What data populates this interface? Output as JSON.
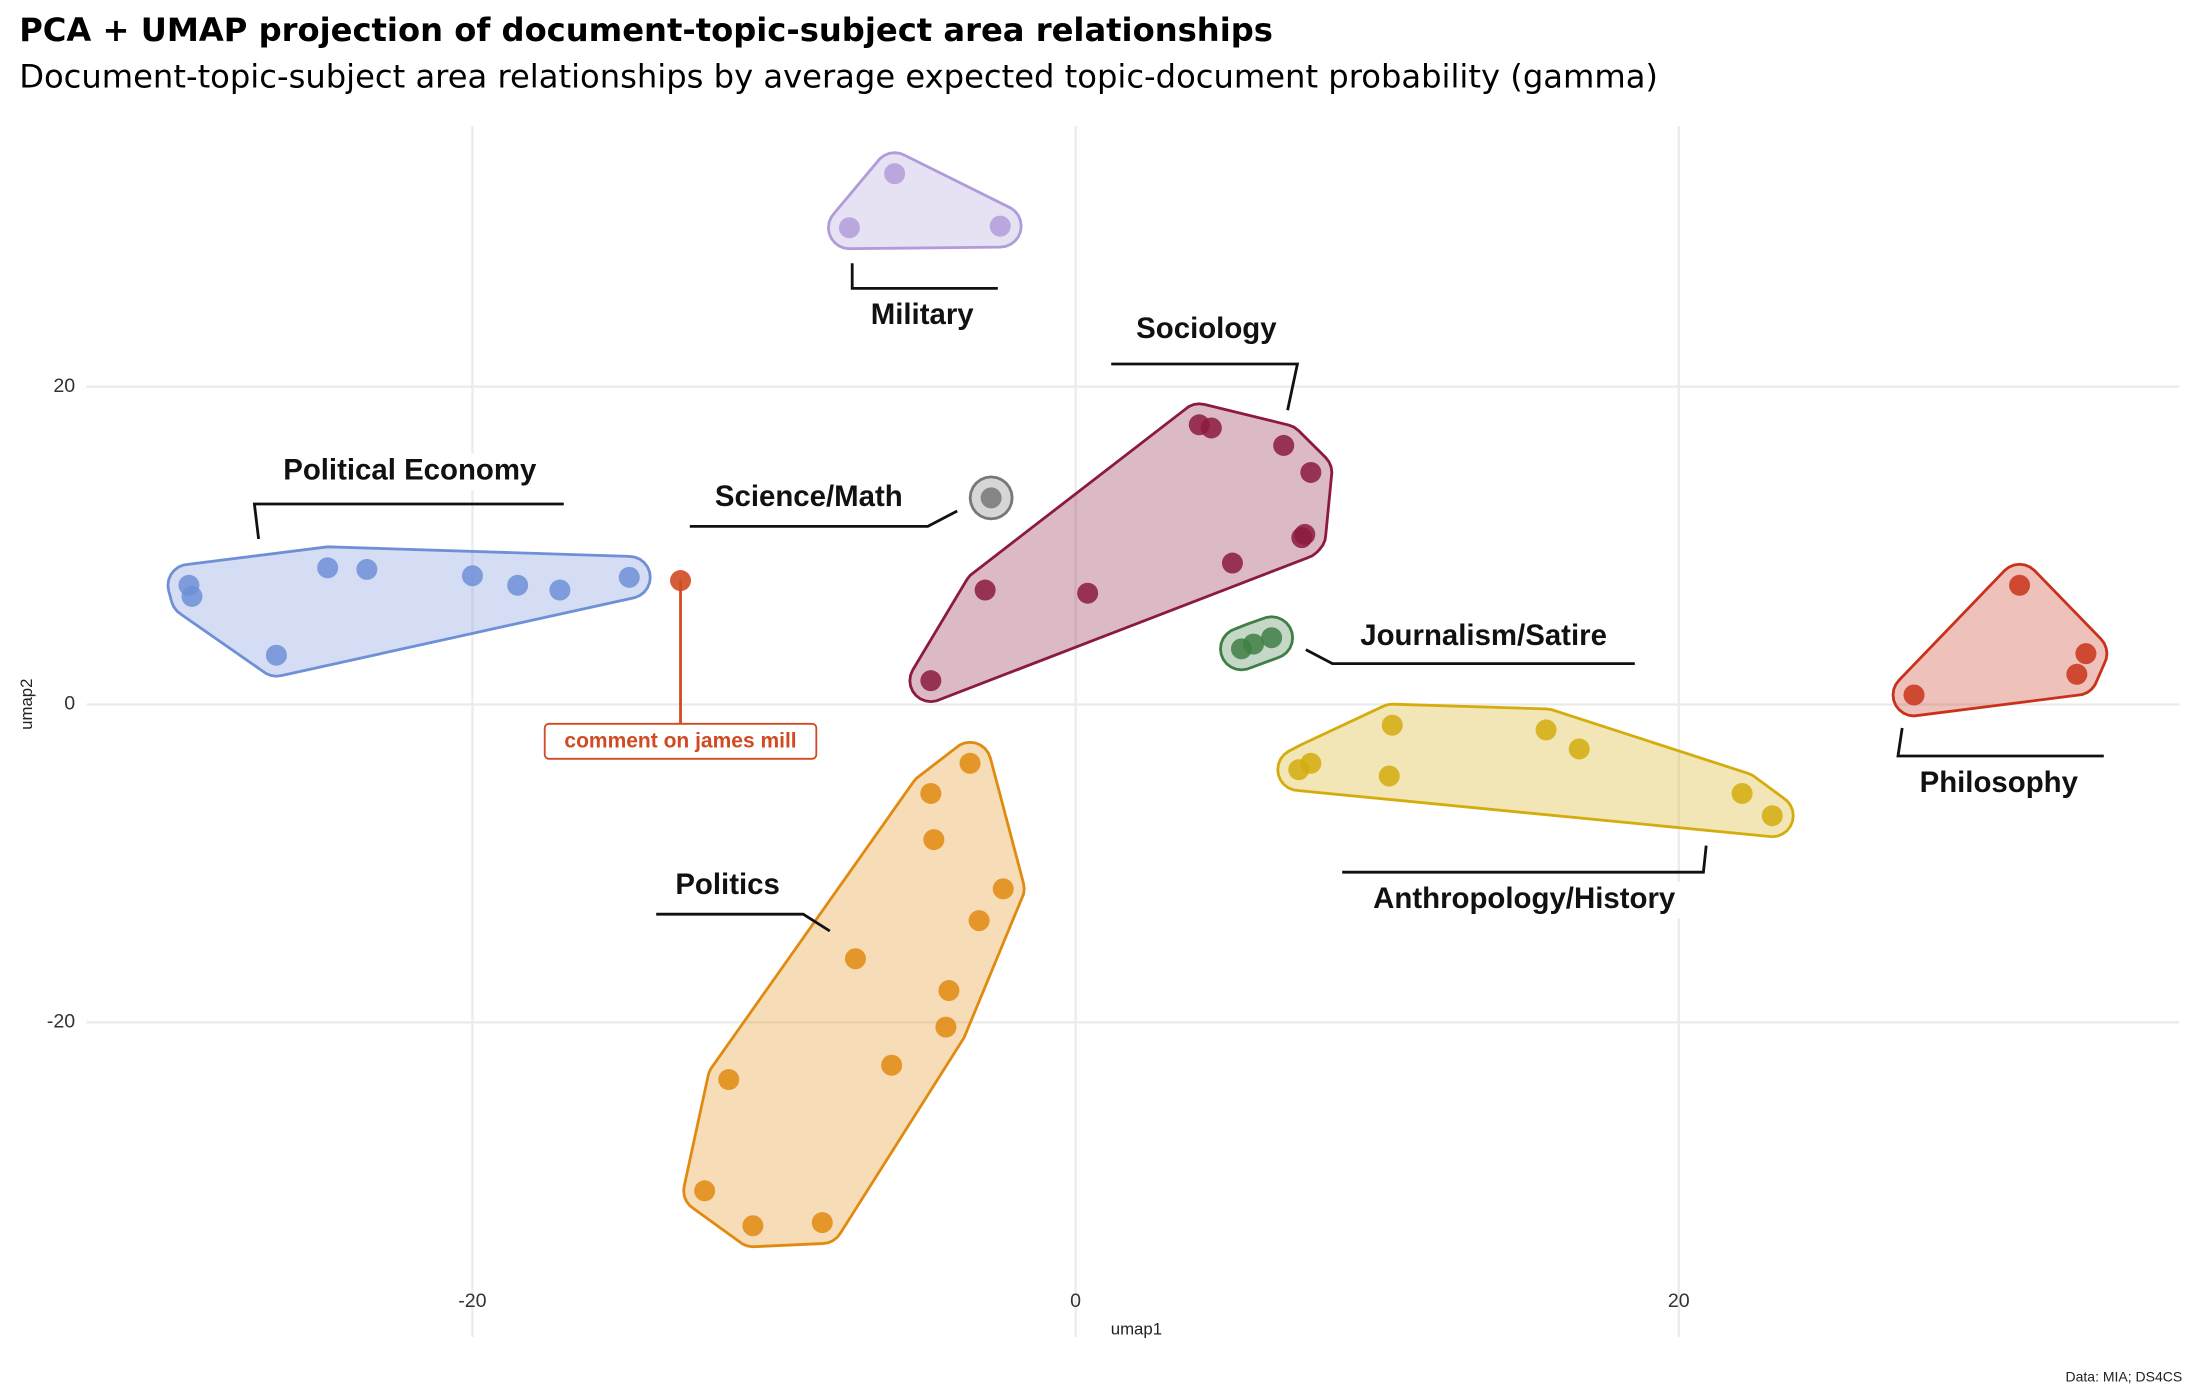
{
  "chart_data": {
    "type": "scatter",
    "title": "PCA + UMAP projection of document-topic-subject area relationships",
    "subtitle": "Document-topic-subject area relationships by average expected topic-document probability (gamma)",
    "x_label": "umap1",
    "y_label": "umap2",
    "caption": "Data: MIA; DS4CS",
    "xlim": [
      -32.8,
      36.6
    ],
    "ylim": [
      -39.8,
      36.4
    ],
    "xticks": [
      -20,
      0,
      20
    ],
    "yticks": [
      -20,
      0,
      20
    ],
    "grid": true,
    "series": [
      {
        "name": "Political Economy",
        "color": "#6f8fd6",
        "x": [
          -29.4,
          -29.3,
          -24.8,
          -23.5,
          -20.0,
          -18.5,
          -17.1,
          -14.8,
          -26.5
        ],
        "y": [
          7.5,
          6.8,
          8.6,
          8.5,
          8.1,
          7.5,
          7.2,
          8.0,
          3.1
        ]
      },
      {
        "name": "Science/Math",
        "color": "#777777",
        "x": [
          -2.8
        ],
        "y": [
          13.0
        ]
      },
      {
        "name": "Military",
        "color": "#b19cd9",
        "x": [
          -7.5,
          -6.0,
          -2.5
        ],
        "y": [
          30.0,
          33.4,
          30.1
        ]
      },
      {
        "name": "Sociology",
        "color": "#8b1a3e",
        "x": [
          4.1,
          4.5,
          6.9,
          7.8,
          7.6,
          7.5,
          5.2,
          0.4,
          -3.0,
          -4.8
        ],
        "y": [
          17.6,
          17.4,
          16.3,
          14.6,
          10.7,
          10.5,
          8.9,
          7.0,
          7.2,
          1.5
        ]
      },
      {
        "name": "Journalism/Satire",
        "color": "#3f7f45",
        "x": [
          5.5,
          5.9,
          6.5
        ],
        "y": [
          3.5,
          3.8,
          4.2
        ]
      },
      {
        "name": "Anthropology/History",
        "color": "#d4ac0d",
        "x": [
          10.5,
          10.4,
          7.8,
          7.4,
          15.6,
          16.7,
          22.1,
          23.1
        ],
        "y": [
          -1.3,
          -4.5,
          -3.7,
          -4.1,
          -1.6,
          -2.8,
          -5.6,
          -7.0
        ]
      },
      {
        "name": "Philosophy",
        "color": "#c8321a",
        "x": [
          27.8,
          31.3,
          33.5,
          33.2
        ],
        "y": [
          0.6,
          7.5,
          3.2,
          1.9
        ]
      },
      {
        "name": "Politics",
        "color": "#e08a10",
        "x": [
          -3.5,
          -4.8,
          -4.7,
          -2.4,
          -3.2,
          -7.3,
          -4.2,
          -4.3,
          -6.1,
          -11.5,
          -12.3,
          -10.7,
          -8.4
        ],
        "y": [
          -3.7,
          -5.6,
          -8.5,
          -11.6,
          -13.6,
          -16.0,
          -18.0,
          -20.3,
          -22.7,
          -23.6,
          -30.6,
          -32.8,
          -32.6
        ]
      }
    ],
    "annotation": {
      "text": "comment on james mill",
      "x": -13.1,
      "y": 7.8,
      "color": "#d04a22"
    }
  }
}
